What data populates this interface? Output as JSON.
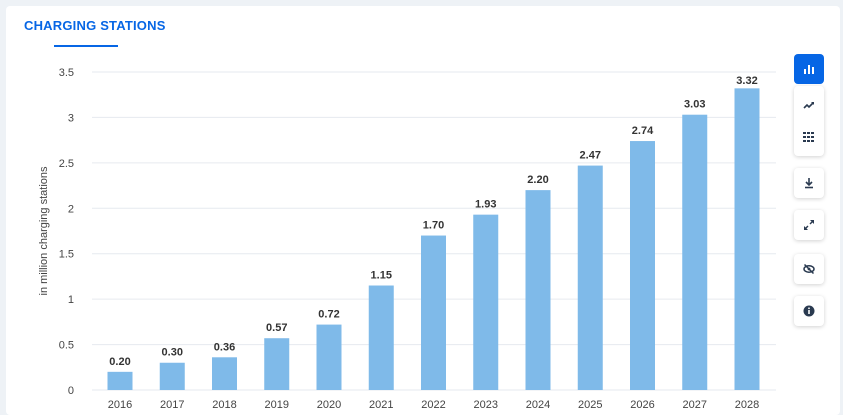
{
  "header": {
    "title": "CHARGING STATIONS"
  },
  "colors": {
    "bar": "#7fbae9",
    "accent": "#0666e5",
    "grid": "#e6eaef",
    "text": "#333333"
  },
  "toolbar": [
    {
      "icon": "bar-chart-icon"
    },
    {
      "icon": "trend-line-icon"
    },
    {
      "icon": "table-icon"
    },
    {
      "icon": "download-icon"
    },
    {
      "icon": "expand-icon"
    },
    {
      "icon": "hide-icon"
    },
    {
      "icon": "info-icon"
    }
  ],
  "chart_data": {
    "type": "bar",
    "title": "",
    "xlabel": "",
    "ylabel": "in million charging stations",
    "ylim": [
      0,
      3.5
    ],
    "yticks": [
      "0",
      "0.5",
      "1",
      "1.5",
      "2",
      "2.5",
      "3",
      "3.5"
    ],
    "categories": [
      "2016",
      "2017",
      "2018",
      "2019",
      "2020",
      "2021",
      "2022",
      "2023",
      "2024",
      "2025",
      "2026",
      "2027",
      "2028"
    ],
    "values": [
      0.2,
      0.3,
      0.36,
      0.57,
      0.72,
      1.15,
      1.7,
      1.93,
      2.2,
      2.47,
      2.74,
      3.03,
      3.32
    ],
    "labels": [
      "0.20",
      "0.30",
      "0.36",
      "0.57",
      "0.72",
      "1.15",
      "1.70",
      "1.93",
      "2.20",
      "2.47",
      "2.74",
      "3.03",
      "3.32"
    ],
    "grid": true
  }
}
